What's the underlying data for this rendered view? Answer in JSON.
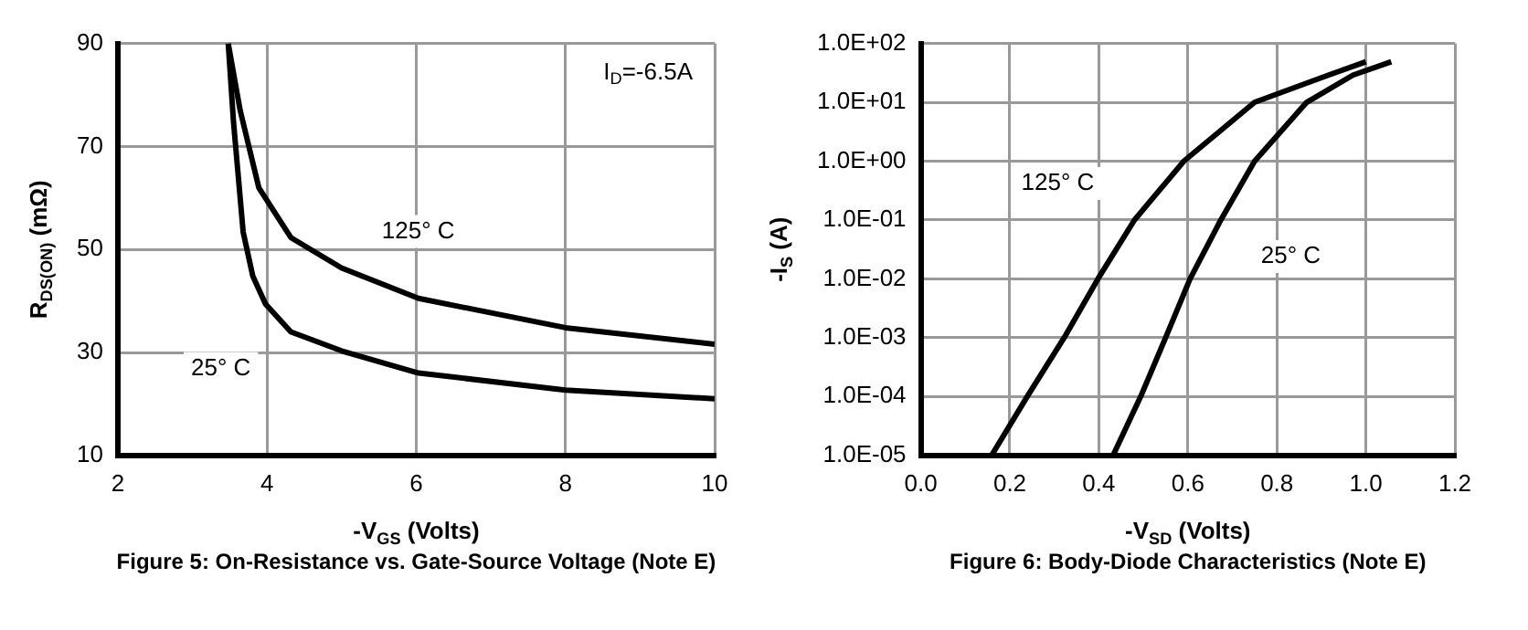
{
  "chart_data": [
    {
      "type": "line",
      "title": "Figure 5: On-Resistance vs. Gate-Source Voltage (Note E)",
      "xlabel": "-V$_{GS}$ (Volts)",
      "ylabel": "R$_{DS(ON)}$ (mΩ)",
      "xlim": [
        2,
        10
      ],
      "ylim": [
        10,
        90
      ],
      "xticks": [
        2,
        4,
        6,
        8,
        10
      ],
      "yticks": [
        10,
        30,
        50,
        70,
        90
      ],
      "grid": true,
      "legend": false,
      "marker": "none",
      "line_style": "solid",
      "annotations": [
        "I$_{D}$=-6.5A"
      ],
      "series": [
        {
          "name": "25° C",
          "color": "#000000",
          "x": [
            3.48,
            3.55,
            3.68,
            3.81,
            3.98,
            4.32,
            5.0,
            6.03,
            8.0,
            10
          ],
          "values": [
            90,
            74.9,
            53.4,
            44.8,
            39.4,
            34,
            30.3,
            26,
            22.7,
            21
          ]
        },
        {
          "name": "125° C",
          "color": "#000000",
          "x": [
            3.48,
            3.64,
            3.89,
            4.32,
            5.0,
            6.03,
            8.0,
            10
          ],
          "values": [
            90,
            77,
            62,
            52.3,
            46.4,
            40.5,
            34.8,
            31.6
          ]
        }
      ]
    },
    {
      "type": "line",
      "title": "Figure 6: Body-Diode Characteristics (Note E)",
      "xlabel": "-V$_{SD}$ (Volts)",
      "ylabel": "-I$_{S}$ (A)",
      "xlim": [
        0,
        1.2
      ],
      "ylim": [
        1e-05,
        100
      ],
      "xticks": [
        {
          "value": 0,
          "label": "0.0"
        },
        0.2,
        0.4,
        0.6,
        0.8,
        {
          "value": 1,
          "label": "1.0"
        },
        1.2
      ],
      "yticks": [
        {
          "value": 1e-05,
          "label": "1.0E-05"
        },
        {
          "value": 0.0001,
          "label": "1.0E-04"
        },
        {
          "value": 0.001,
          "label": "1.0E-03"
        },
        {
          "value": 0.01,
          "label": "1.0E-02"
        },
        {
          "value": 0.1,
          "label": "1.0E-01"
        },
        {
          "value": 1,
          "label": "1.0E+00"
        },
        {
          "value": 10,
          "label": "1.0E+01"
        },
        {
          "value": 100,
          "label": "1.0E+02"
        }
      ],
      "log": "y",
      "grid": true,
      "legend": false,
      "marker": "none",
      "line_style": "solid",
      "series": [
        {
          "name": "125° C",
          "color": "#000000",
          "x": [
            0.159,
            0.239,
            0.322,
            0.398,
            0.48,
            0.591,
            0.75,
            0.916,
            1.0
          ],
          "values": [
            1e-05,
            0.0001,
            0.001,
            0.01,
            0.1,
            1,
            10,
            29,
            49
          ]
        },
        {
          "name": "25° C",
          "color": "#000000",
          "x": [
            0.432,
            0.494,
            0.55,
            0.605,
            0.674,
            0.75,
            0.867,
            0.971,
            1.057
          ],
          "values": [
            1e-05,
            0.0001,
            0.001,
            0.01,
            0.1,
            1,
            10,
            29,
            49
          ]
        }
      ]
    }
  ]
}
